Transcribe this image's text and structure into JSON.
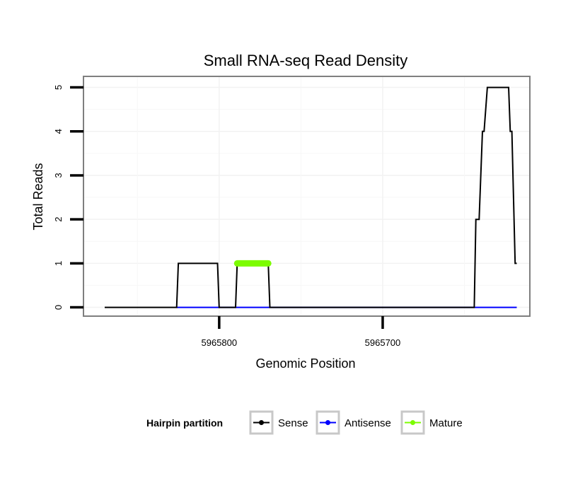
{
  "chart_data": {
    "type": "line",
    "title": "Small RNA-seq Read Density",
    "xlabel": "Genomic Position",
    "ylabel": "Total Reads",
    "xlim": [
      5965883,
      5965610
    ],
    "x_reversed": true,
    "ylim": [
      -0.2,
      5.25
    ],
    "grid": true,
    "x_ticks": [
      5965800,
      5965700
    ],
    "x_tick_labels": [
      "5965800",
      "5965700"
    ],
    "y_ticks": [
      0,
      1,
      2,
      3,
      4,
      5
    ],
    "y_tick_labels": [
      "0",
      "1",
      "2",
      "3",
      "4",
      "5"
    ],
    "legend": {
      "title": "Hairpin partition",
      "position": "bottom",
      "entries": [
        "Sense",
        "Antisense",
        "Mature"
      ]
    },
    "series": [
      {
        "name": "Sense",
        "color": "#000000",
        "points": [
          [
            5965870,
            0
          ],
          [
            5965826,
            0
          ],
          [
            5965825,
            1
          ],
          [
            5965801,
            1
          ],
          [
            5965800,
            0
          ],
          [
            5965790,
            0
          ],
          [
            5965789,
            1
          ],
          [
            5965770,
            1
          ],
          [
            5965769,
            0
          ],
          [
            5965644,
            0
          ],
          [
            5965643,
            2
          ],
          [
            5965641,
            2
          ],
          [
            5965639,
            4
          ],
          [
            5965638,
            4
          ],
          [
            5965636,
            5
          ],
          [
            5965623,
            5
          ],
          [
            5965622,
            4
          ],
          [
            5965621,
            4
          ],
          [
            5965619,
            1
          ],
          [
            5965618,
            1
          ]
        ]
      },
      {
        "name": "Antisense",
        "color": "#0000ff",
        "points": [
          [
            5965826,
            0
          ],
          [
            5965618,
            0
          ]
        ]
      },
      {
        "name": "Mature",
        "color": "#7cfc00",
        "points": [
          [
            5965789,
            1
          ],
          [
            5965770,
            1
          ]
        ],
        "markers": true
      }
    ]
  }
}
